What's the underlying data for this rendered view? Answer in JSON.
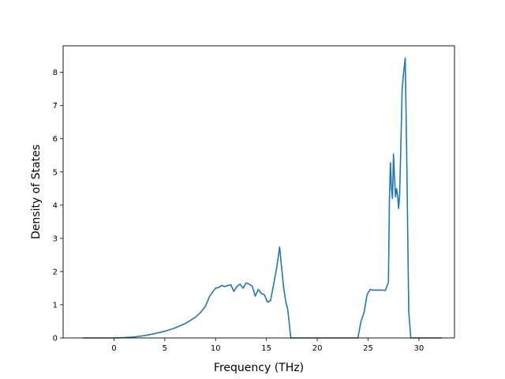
{
  "chart_data": {
    "type": "line",
    "title": "",
    "xlabel": "Frequency (THz)",
    "ylabel": "Density of States",
    "xlim": [
      -5.0,
      33.5
    ],
    "ylim": [
      0,
      8.8
    ],
    "xticks": [
      0,
      5,
      10,
      15,
      20,
      25,
      30
    ],
    "yticks": [
      0,
      1,
      2,
      3,
      4,
      5,
      6,
      7,
      8
    ],
    "grid": false,
    "legend": "none",
    "line_color": "#1f77b4",
    "series": [
      {
        "x": [
          -3.0,
          -2.0,
          -1.0,
          0.0,
          1.0,
          2.0,
          3.0,
          4.0,
          5.0,
          6.0,
          7.0,
          8.0,
          8.5,
          9.0,
          9.4,
          9.7,
          10.0,
          10.3,
          10.6,
          10.9,
          11.2,
          11.5,
          11.8,
          12.1,
          12.4,
          12.7,
          13.0,
          13.3,
          13.6,
          13.9,
          14.2,
          14.5,
          14.8,
          15.1,
          15.4,
          15.7,
          16.0,
          16.3,
          16.5,
          16.7,
          16.9,
          17.1,
          17.4,
          17.7,
          18.0,
          19.0,
          20.0,
          21.0,
          22.0,
          23.0,
          24.0,
          24.3,
          24.6,
          24.9,
          25.2,
          25.5,
          25.8,
          26.1,
          26.4,
          26.7,
          27.0,
          27.1,
          27.2,
          27.3,
          27.4,
          27.5,
          27.6,
          27.7,
          27.8,
          27.9,
          28.0,
          28.1,
          28.2,
          28.35,
          28.5,
          28.65,
          28.8,
          28.9,
          29.0,
          29.2,
          29.4,
          30.0,
          31.0,
          32.2
        ],
        "y": [
          0.0,
          0.0,
          0.0,
          0.0,
          0.01,
          0.03,
          0.07,
          0.13,
          0.2,
          0.3,
          0.43,
          0.62,
          0.76,
          0.95,
          1.25,
          1.38,
          1.5,
          1.52,
          1.58,
          1.55,
          1.58,
          1.6,
          1.4,
          1.55,
          1.62,
          1.5,
          1.66,
          1.62,
          1.56,
          1.26,
          1.46,
          1.34,
          1.3,
          1.08,
          1.12,
          1.6,
          2.1,
          2.74,
          2.1,
          1.5,
          1.1,
          0.85,
          0.0,
          0.0,
          0.0,
          0.0,
          0.0,
          0.0,
          0.0,
          0.0,
          0.0,
          0.5,
          0.76,
          1.3,
          1.46,
          1.44,
          1.44,
          1.44,
          1.44,
          1.43,
          1.68,
          4.2,
          5.28,
          4.5,
          4.2,
          5.54,
          4.8,
          4.25,
          4.5,
          4.3,
          3.9,
          4.3,
          5.5,
          7.5,
          8.0,
          8.43,
          5.5,
          3.1,
          0.8,
          0.0,
          0.0,
          0.0,
          0.0,
          0.0
        ]
      }
    ]
  }
}
